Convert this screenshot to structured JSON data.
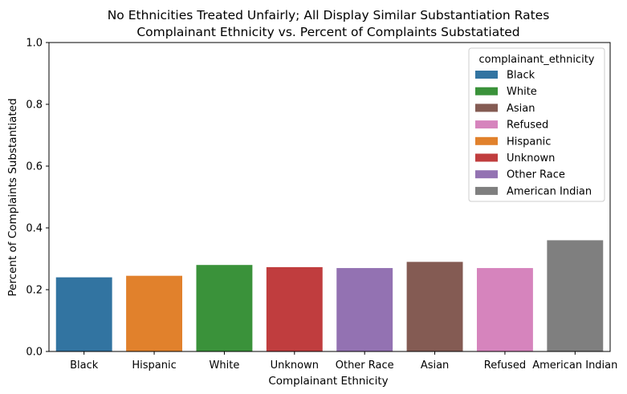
{
  "chart_data": {
    "type": "bar",
    "title": "No Ethnicities Treated Unfairly; All Display Similar Substantiation Rates",
    "subtitle": "Complainant Ethnicity vs. Percent of Complaints Substatiated",
    "xlabel": "Complainant Ethnicity",
    "ylabel": "Percent of Complaints Substantiated",
    "ylim": [
      0,
      1.0
    ],
    "yticks": [
      "0.0",
      "0.2",
      "0.4",
      "0.6",
      "0.8",
      "1.0"
    ],
    "grid": false,
    "categories": [
      "Black",
      "Hispanic",
      "White",
      "Unknown",
      "Other Race",
      "Asian",
      "Refused",
      "American Indian"
    ],
    "values": [
      0.24,
      0.245,
      0.28,
      0.273,
      0.27,
      0.29,
      0.27,
      0.36
    ],
    "colors": [
      "#3274a1",
      "#e1812c",
      "#3a923a",
      "#c03d3e",
      "#9372b2",
      "#845b53",
      "#d684bd",
      "#7f7f7f"
    ],
    "legend": {
      "title": "complainant_ethnicity",
      "placement": "top-right",
      "entries": [
        {
          "label": "Black",
          "color": "#3274a1"
        },
        {
          "label": "White",
          "color": "#3a923a"
        },
        {
          "label": "Asian",
          "color": "#845b53"
        },
        {
          "label": "Refused",
          "color": "#d684bd"
        },
        {
          "label": "Hispanic",
          "color": "#e1812c"
        },
        {
          "label": "Unknown",
          "color": "#c03d3e"
        },
        {
          "label": "Other Race",
          "color": "#9372b2"
        },
        {
          "label": "American Indian",
          "color": "#7f7f7f"
        }
      ]
    }
  }
}
